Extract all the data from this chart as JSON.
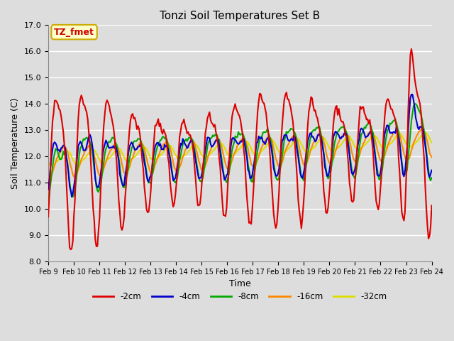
{
  "title": "Tonzi Soil Temperatures Set B",
  "xlabel": "Time",
  "ylabel": "Soil Temperature (C)",
  "ylim": [
    8.0,
    17.0
  ],
  "yticks": [
    8.0,
    9.0,
    10.0,
    11.0,
    12.0,
    13.0,
    14.0,
    15.0,
    16.0,
    17.0
  ],
  "x_tick_labels": [
    "Feb 9",
    "Feb 10",
    "Feb 11",
    "Feb 12",
    "Feb 13",
    "Feb 14",
    "Feb 15",
    "Feb 16",
    "Feb 17",
    "Feb 18",
    "Feb 19",
    "Feb 20",
    "Feb 21",
    "Feb 22",
    "Feb 23",
    "Feb 24"
  ],
  "annotation_text": "TZ_fmet",
  "annotation_color": "#cc0000",
  "annotation_bg": "#ffffcc",
  "annotation_border": "#ccaa00",
  "colors": {
    "-2cm": "#dd0000",
    "-4cm": "#0000cc",
    "-8cm": "#00aa00",
    "-16cm": "#ff8800",
    "-32cm": "#dddd00"
  },
  "legend_labels": [
    "-2cm",
    "-4cm",
    "-8cm",
    "-16cm",
    "-32cm"
  ],
  "background_color": "#dddddd",
  "grid_color": "#ffffff",
  "figsize": [
    6.4,
    4.8
  ],
  "dpi": 100
}
